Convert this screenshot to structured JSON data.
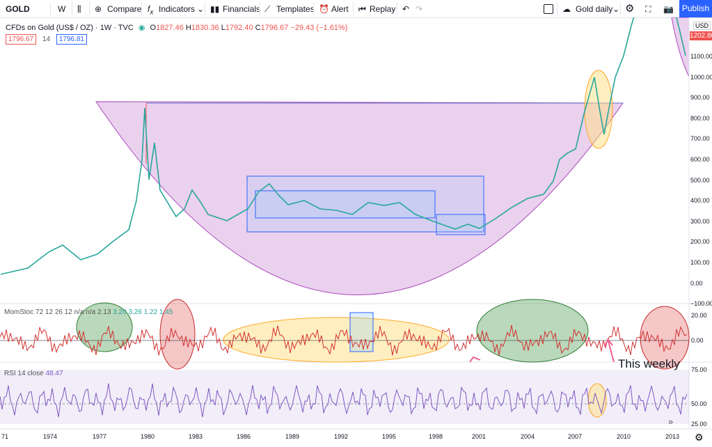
{
  "toolbar": {
    "symbol": "GOLD",
    "interval": "W",
    "buttons": [
      "Compare",
      "Indicators",
      "Financials",
      "Templates",
      "Alert",
      "Replay"
    ],
    "layout_name": "Gold daily",
    "publish": "Publish"
  },
  "legend": {
    "title": "CFDs on Gold (US$ / OZ) · 1W · TVC",
    "open_label": "O",
    "open": "1827.46",
    "high_label": "H",
    "high": "1830.36",
    "low_label": "L",
    "low": "1792.40",
    "close_label": "C",
    "close": "1796.67",
    "change": "−29.43 (−1.61%)",
    "inputs": [
      "1796.67",
      "14",
      "1796.81"
    ]
  },
  "price_axis": {
    "currency": "USD",
    "current": "1202.80",
    "labels": [
      "1100.00",
      "1000.00",
      "900.00",
      "800.00",
      "700.00",
      "600.00",
      "500.00",
      "400.00",
      "300.00",
      "200.00",
      "100.00",
      "0.00",
      "−100.00"
    ]
  },
  "momentum": {
    "legend": "MomStoc 72 12 26 12 n/a n/a 2.13",
    "values": "3.20 3.26 1.22 1.45",
    "axis": [
      "20.00",
      "0.00"
    ]
  },
  "rsi": {
    "legend": "RSI 14 close",
    "value": "48.47",
    "axis": [
      "75.00",
      "50.00",
      "25.00"
    ]
  },
  "annotation": "This weekly",
  "time_axis": [
    "71",
    "1974",
    "1977",
    "1980",
    "1983",
    "1986",
    "1989",
    "1992",
    "1995",
    "1998",
    "2001",
    "2004",
    "2007",
    "2010",
    "2013"
  ]
}
